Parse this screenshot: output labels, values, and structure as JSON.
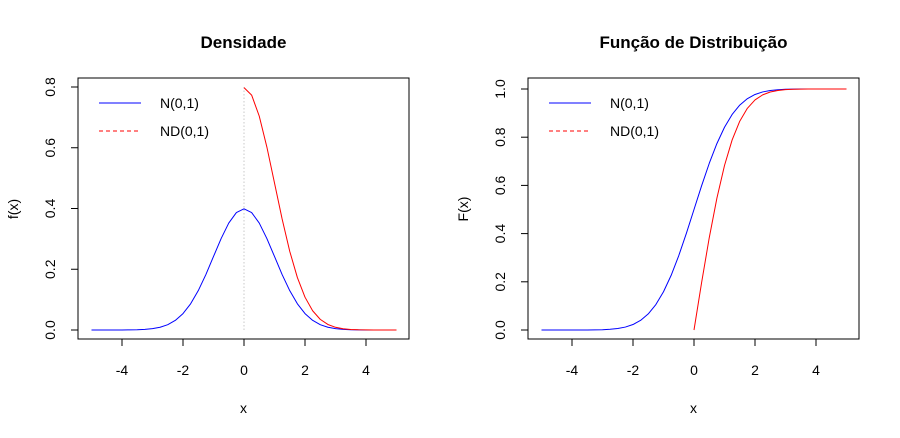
{
  "chart_data": [
    {
      "type": "line",
      "title": "Densidade",
      "xlabel": "x",
      "ylabel": "f(x)",
      "xlim": [
        -5,
        5
      ],
      "ylim": [
        0,
        0.8
      ],
      "xticks": [
        -4,
        -2,
        0,
        2,
        4
      ],
      "yticks": [
        0.0,
        0.2,
        0.4,
        0.6,
        0.8
      ],
      "ytick_labels": [
        "0.0",
        "0.2",
        "0.4",
        "0.6",
        "0.8"
      ],
      "grid": false,
      "legend_position": "top-left",
      "reference_line": {
        "x": 0,
        "from_y": 0,
        "to_y": 0.8,
        "color": "#c8c8c8",
        "style": "dotted"
      },
      "series": [
        {
          "name": "N(0,1)",
          "color": "#0000ff",
          "legend_style": "solid",
          "x": [
            -5,
            -4.75,
            -4.5,
            -4.25,
            -4,
            -3.75,
            -3.5,
            -3.25,
            -3,
            -2.75,
            -2.5,
            -2.25,
            -2,
            -1.75,
            -1.5,
            -1.25,
            -1,
            -0.75,
            -0.5,
            -0.25,
            0,
            0.25,
            0.5,
            0.75,
            1,
            1.25,
            1.5,
            1.75,
            2,
            2.25,
            2.5,
            2.75,
            3,
            3.25,
            3.5,
            3.75,
            4,
            4.25,
            4.5,
            4.75,
            5
          ],
          "y": [
            0,
            0,
            0,
            0,
            0.0001,
            0.0004,
            0.0009,
            0.002,
            0.0044,
            0.0091,
            0.0175,
            0.0317,
            0.054,
            0.0863,
            0.1295,
            0.1826,
            0.242,
            0.3011,
            0.3521,
            0.3867,
            0.3989,
            0.3867,
            0.3521,
            0.3011,
            0.242,
            0.1826,
            0.1295,
            0.0863,
            0.054,
            0.0317,
            0.0175,
            0.0091,
            0.0044,
            0.002,
            0.0009,
            0.0004,
            0.0001,
            0,
            0,
            0,
            0
          ]
        },
        {
          "name": "ND(0,1)",
          "color": "#ff0000",
          "legend_style": "dashed",
          "x": [
            0,
            0.25,
            0.5,
            0.75,
            1,
            1.25,
            1.5,
            1.75,
            2,
            2.25,
            2.5,
            2.75,
            3,
            3.25,
            3.5,
            3.75,
            4,
            4.25,
            4.5,
            4.75,
            5
          ],
          "y": [
            0.7979,
            0.7734,
            0.7041,
            0.6022,
            0.4839,
            0.3653,
            0.259,
            0.1726,
            0.108,
            0.0634,
            0.035,
            0.0182,
            0.0089,
            0.0041,
            0.0017,
            0.0007,
            0.0003,
            0.0001,
            0,
            0,
            0
          ]
        }
      ]
    },
    {
      "type": "line",
      "title": "Função de Distribuição",
      "xlabel": "x",
      "ylabel": "F(x)",
      "xlim": [
        -5,
        5
      ],
      "ylim": [
        0,
        1
      ],
      "xticks": [
        -4,
        -2,
        0,
        2,
        4
      ],
      "yticks": [
        0.0,
        0.2,
        0.4,
        0.6,
        0.8,
        1.0
      ],
      "ytick_labels": [
        "0.0",
        "0.2",
        "0.4",
        "0.6",
        "0.8",
        "1.0"
      ],
      "grid": false,
      "legend_position": "top-left",
      "series": [
        {
          "name": "N(0,1)",
          "color": "#0000ff",
          "legend_style": "solid",
          "x": [
            -5,
            -4.75,
            -4.5,
            -4.25,
            -4,
            -3.75,
            -3.5,
            -3.25,
            -3,
            -2.75,
            -2.5,
            -2.25,
            -2,
            -1.75,
            -1.5,
            -1.25,
            -1,
            -0.75,
            -0.5,
            -0.25,
            0,
            0.25,
            0.5,
            0.75,
            1,
            1.25,
            1.5,
            1.75,
            2,
            2.25,
            2.5,
            2.75,
            3,
            3.25,
            3.5,
            3.75,
            4,
            4.25,
            4.5,
            4.75,
            5
          ],
          "y": [
            0,
            0,
            0,
            0,
            0,
            0.0001,
            0.0002,
            0.0006,
            0.0013,
            0.003,
            0.0062,
            0.0122,
            0.0228,
            0.0401,
            0.0668,
            0.1056,
            0.1587,
            0.2266,
            0.3085,
            0.4013,
            0.5,
            0.5987,
            0.6915,
            0.7734,
            0.8413,
            0.8944,
            0.9332,
            0.9599,
            0.9772,
            0.9878,
            0.9938,
            0.997,
            0.9987,
            0.9994,
            0.9998,
            0.9999,
            1,
            1,
            1,
            1,
            1
          ]
        },
        {
          "name": "ND(0,1)",
          "color": "#ff0000",
          "legend_style": "dashed",
          "x": [
            0,
            0.25,
            0.5,
            0.75,
            1,
            1.25,
            1.5,
            1.75,
            2,
            2.25,
            2.5,
            2.75,
            3,
            3.25,
            3.5,
            3.75,
            4,
            4.25,
            4.5,
            4.75,
            5
          ],
          "y": [
            0,
            0.1974,
            0.3829,
            0.5467,
            0.6827,
            0.7887,
            0.8664,
            0.9199,
            0.9545,
            0.9756,
            0.9876,
            0.994,
            0.9973,
            0.9988,
            0.9995,
            0.9998,
            0.9999,
            1,
            1,
            1,
            1
          ]
        }
      ]
    }
  ]
}
